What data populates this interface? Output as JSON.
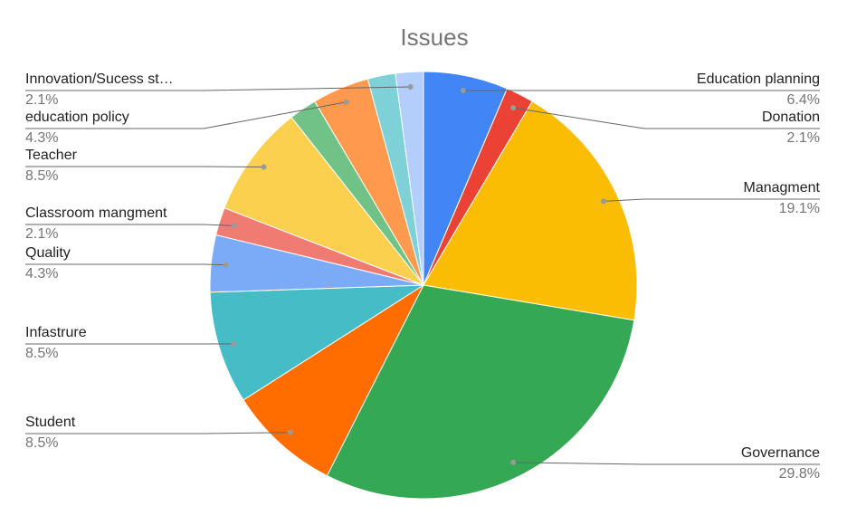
{
  "chart_data": {
    "type": "pie",
    "title": "Issues",
    "categories": [
      "Education planning",
      "Donation",
      "Managment",
      "Governance",
      "Student",
      "Infastrure",
      "Quality",
      "Classroom mangment",
      "Teacher",
      null,
      "education policy",
      null,
      "Innovation/Sucess st…"
    ],
    "values": [
      6.4,
      2.1,
      19.1,
      29.8,
      8.5,
      8.5,
      4.3,
      2.1,
      8.5,
      2.1,
      4.3,
      2.1,
      2.1
    ],
    "value_labels": [
      "6.4%",
      "2.1%",
      "19.1%",
      "29.8%",
      "8.5%",
      "8.5%",
      "4.3%",
      "2.1%",
      "8.5%",
      null,
      "4.3%",
      null,
      "2.1%"
    ],
    "colors": [
      "#4285f4",
      "#ea4335",
      "#fbbc04",
      "#34a853",
      "#ff6d01",
      "#46bdc6",
      "#7baaf7",
      "#f07b72",
      "#fcd04f",
      "#71c287",
      "#ff994d",
      "#7ed1d7",
      "#b3cefb"
    ]
  }
}
